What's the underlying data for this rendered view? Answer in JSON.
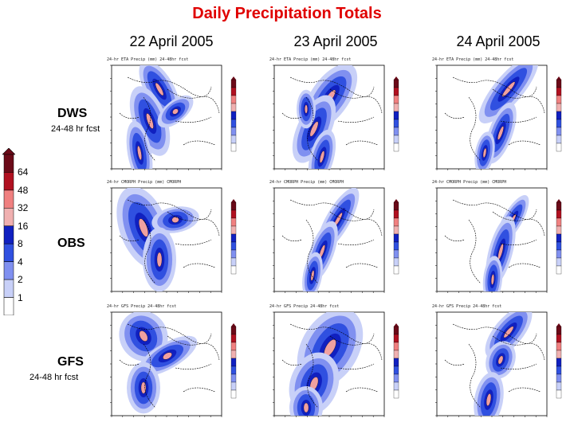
{
  "title": "Daily Precipitation Totals",
  "columns": [
    "22 April 2005",
    "23 April 2005",
    "24 April 2005"
  ],
  "rows": [
    {
      "label": "DWS",
      "sub": "24-48 hr fcst"
    },
    {
      "label": "OBS",
      "sub": ""
    },
    {
      "label": "GFS",
      "sub": "24-48 hr fcst"
    }
  ],
  "colorbar": {
    "levels": [
      "64",
      "48",
      "32",
      "16",
      "8",
      "4",
      "2",
      "1"
    ],
    "colors": [
      "#6b0a18",
      "#b01020",
      "#f08080",
      "#f0b0b0",
      "#1020c0",
      "#3050e0",
      "#8090f0",
      "#c8d0f8",
      "#ffffff"
    ]
  },
  "panel_titles": [
    [
      "24-hr ETA Precip (mm) 24-48hr fcst",
      "24-hr ETA Precip (mm) 24-48hr fcst",
      "24-hr ETA Precip (mm) 24-48hr fcst"
    ],
    [
      "24-hr CMORPH Precip (mm) CMORPH",
      "24-hr CMORPH Precip (mm) CMORPH",
      "24-hr CMORPH Precip (mm) CMORPH"
    ],
    [
      "24-hr GFS Precip 24-48hr fcst",
      "24-hr GFS Precip 24-48hr fcst",
      "24-hr GFS Precip 24-48hr fcst"
    ]
  ]
}
